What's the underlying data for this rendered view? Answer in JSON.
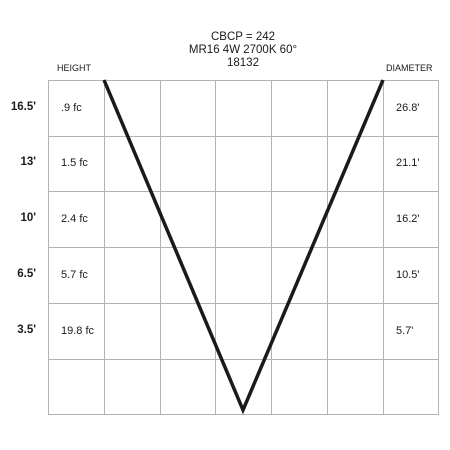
{
  "title": {
    "line1": "CBCP = 242",
    "line2": "MR16 4W 2700K 60°",
    "line3": "18132"
  },
  "headers": {
    "height": "HEIGHT",
    "diameter": "DIAMETER"
  },
  "rows": [
    {
      "height": "16.5'",
      "footcandles": ".9 fc",
      "diameter": "26.8'"
    },
    {
      "height": "13'",
      "footcandles": "1.5 fc",
      "diameter": "21.1'"
    },
    {
      "height": "10'",
      "footcandles": "2.4 fc",
      "diameter": "16.2'"
    },
    {
      "height": "6.5'",
      "footcandles": "5.7 fc",
      "diameter": "10.5'"
    },
    {
      "height": "3.5'",
      "footcandles": "19.8 fc",
      "diameter": "5.7'"
    }
  ],
  "colors": {
    "grid": "#b3b3b3",
    "beam": "#1a1a1a",
    "text": "#1a1a1a"
  }
}
